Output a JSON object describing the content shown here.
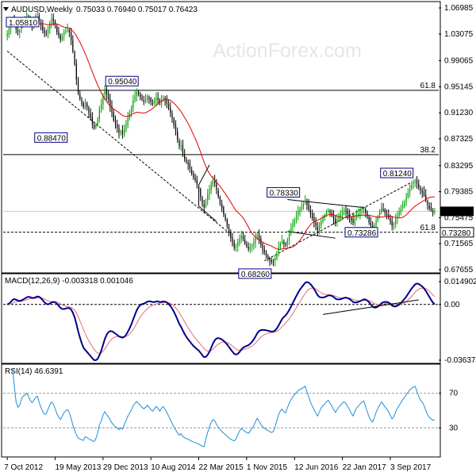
{
  "header": {
    "symbol_title": "AUDUSD,Weekly",
    "ohlc": "0.75033 0.76940 0.75017 0.76423"
  },
  "watermark": "ActionForex.com",
  "colors": {
    "bull": "#00a000",
    "bear": "#000000",
    "ma": "#e00000",
    "macd": "#00008b",
    "signal": "#e07070",
    "rsi": "#1e8fd8",
    "level": "#000000",
    "watermark": "#e6e6e6"
  },
  "chart_data": [
    {
      "type": "candlestick",
      "title": "AUDUSD,Weekly",
      "price_axis_ticks": [
        "1.06985",
        "1.03075",
        "0.99065",
        "0.95145",
        "0.91230",
        "0.87325",
        "0.83295",
        "0.79385",
        "0.75475",
        "0.71565",
        "0.67655"
      ],
      "ylim": [
        0.67655,
        1.06985
      ],
      "x_ticks": [
        "7 Oct 2012",
        "19 May 2013",
        "29 Dec 2013",
        "10 Aug 2014",
        "22 Mar 2015",
        "1 Nov 2015",
        "12 Jun 2016",
        "22 Jan 2017",
        "3 Sep 2017"
      ],
      "current_price": 0.76423,
      "horizontal_levels": [
        {
          "value": 0.9461,
          "label": "61.8",
          "style": "solid"
        },
        {
          "value": 0.8495,
          "label": "38.2",
          "style": "solid"
        },
        {
          "value": 0.7328,
          "label": "61.8",
          "style": "dashed",
          "axis_label": "0.73280"
        }
      ],
      "price_annotations": [
        "1.05810",
        "0.95040",
        "0.88470",
        "0.78330",
        "0.81240",
        "0.73286",
        "0.68260"
      ],
      "overlay": "moving-average",
      "weekly_closes": [
        1.031,
        1.038,
        1.046,
        1.052,
        1.046,
        1.038,
        1.034,
        1.036,
        1.044,
        1.049,
        1.051,
        1.055,
        1.052,
        1.047,
        1.044,
        1.049,
        1.055,
        1.058,
        1.05,
        1.043,
        1.036,
        1.031,
        1.032,
        1.039,
        1.047,
        1.053,
        1.05,
        1.043,
        1.034,
        1.028,
        1.022,
        1.027,
        1.033,
        1.036,
        1.038,
        1.033,
        1.022,
        1.005,
        0.985,
        0.962,
        0.941,
        0.933,
        0.926,
        0.921,
        0.927,
        0.921,
        0.912,
        0.905,
        0.895,
        0.889,
        0.894,
        0.902,
        0.918,
        0.925,
        0.939,
        0.948,
        0.94,
        0.933,
        0.922,
        0.912,
        0.901,
        0.895,
        0.89,
        0.882,
        0.885,
        0.88,
        0.888,
        0.896,
        0.905,
        0.912,
        0.92,
        0.931,
        0.938,
        0.944,
        0.94,
        0.936,
        0.932,
        0.929,
        0.932,
        0.937,
        0.933,
        0.929,
        0.926,
        0.93,
        0.935,
        0.932,
        0.927,
        0.932,
        0.935,
        0.931,
        0.926,
        0.919,
        0.912,
        0.903,
        0.893,
        0.884,
        0.872,
        0.862,
        0.864,
        0.851,
        0.843,
        0.838,
        0.835,
        0.828,
        0.821,
        0.815,
        0.811,
        0.804,
        0.798,
        0.786,
        0.775,
        0.77,
        0.78,
        0.789,
        0.798,
        0.806,
        0.811,
        0.807,
        0.797,
        0.786,
        0.776,
        0.769,
        0.76,
        0.752,
        0.742,
        0.731,
        0.724,
        0.716,
        0.709,
        0.712,
        0.718,
        0.724,
        0.728,
        0.722,
        0.716,
        0.711,
        0.708,
        0.711,
        0.714,
        0.718,
        0.724,
        0.729,
        0.722,
        0.714,
        0.707,
        0.703,
        0.698,
        0.695,
        0.691,
        0.688,
        0.689,
        0.694,
        0.702,
        0.711,
        0.717,
        0.72,
        0.715,
        0.714,
        0.722,
        0.731,
        0.738,
        0.746,
        0.752,
        0.758,
        0.764,
        0.768,
        0.771,
        0.775,
        0.78,
        0.774,
        0.767,
        0.76,
        0.754,
        0.748,
        0.742,
        0.736,
        0.743,
        0.75,
        0.755,
        0.758,
        0.763,
        0.766,
        0.762,
        0.758,
        0.753,
        0.748,
        0.752,
        0.757,
        0.76,
        0.764,
        0.766,
        0.764,
        0.76,
        0.756,
        0.751,
        0.747,
        0.753,
        0.758,
        0.761,
        0.764,
        0.767,
        0.769,
        0.763,
        0.756,
        0.748,
        0.742,
        0.738,
        0.744,
        0.751,
        0.757,
        0.763,
        0.769,
        0.766,
        0.762,
        0.759,
        0.755,
        0.749,
        0.743,
        0.746,
        0.752,
        0.758,
        0.763,
        0.768,
        0.774,
        0.779,
        0.785,
        0.792,
        0.799,
        0.804,
        0.808,
        0.811,
        0.806,
        0.8,
        0.795,
        0.793,
        0.788,
        0.781,
        0.774,
        0.769,
        0.766,
        0.763,
        0.764
      ]
    },
    {
      "type": "line",
      "title": "MACD(12,26,9) -0.003318 0.001046",
      "series_names": [
        "MACD",
        "Signal"
      ],
      "y_ticks": [
        "0.014902",
        "0.00",
        "-0.036374"
      ],
      "ylim": [
        -0.036374,
        0.014902
      ]
    },
    {
      "type": "line",
      "title": "RSI(14) 46.6391",
      "y_ticks": [
        "70",
        "30"
      ],
      "ylim": [
        0,
        100
      ],
      "current_value": 46.6391
    }
  ]
}
